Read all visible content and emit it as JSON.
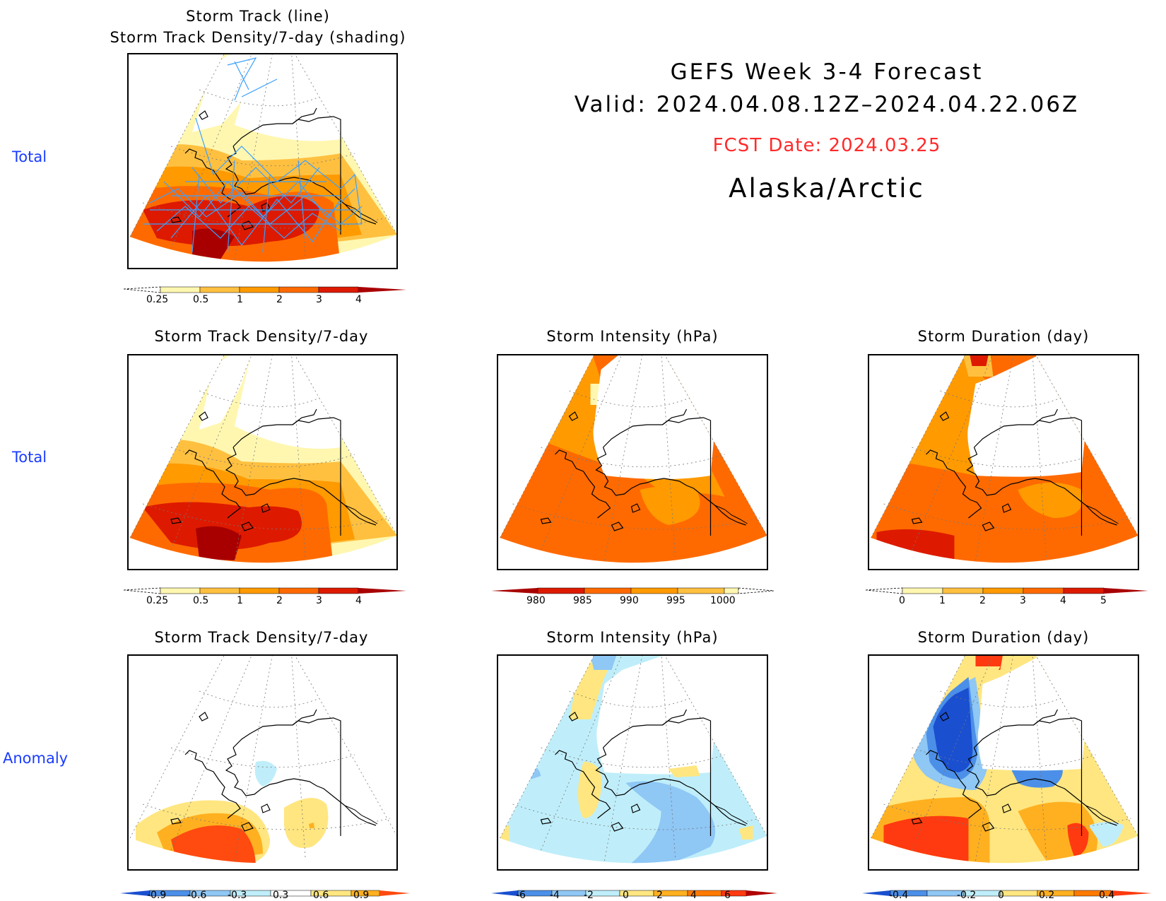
{
  "header": {
    "title_line1": "GEFS Week 3-4 Forecast",
    "title_line2": "Valid: 2024.04.08.12Z–2024.04.22.06Z",
    "fcst_date": "FCST Date: 2024.03.25",
    "region": "Alaska/Arctic"
  },
  "row_labels": {
    "row1": "Total",
    "row2": "Total",
    "row3": "Anomaly"
  },
  "panels": {
    "p1": {
      "title1": "Storm Track (line)",
      "title2": "Storm Track Density/7-day (shading)"
    },
    "p2": {
      "title": "Storm Track Density/7-day"
    },
    "p3": {
      "title": "Storm Intensity (hPa)"
    },
    "p4": {
      "title": "Storm Duration (day)"
    },
    "p5": {
      "title": "Storm Track Density/7-day"
    },
    "p6": {
      "title": "Storm Intensity (hPa)"
    },
    "p7": {
      "title": "Storm Duration (day)"
    }
  },
  "colorbars": {
    "density": {
      "labels": [
        "0.25",
        "0.5",
        "1",
        "2",
        "3",
        "4"
      ],
      "colors": [
        "#ffffff",
        "#fff7b0",
        "#ffc040",
        "#ff9a00",
        "#ff6a00",
        "#dd1a00",
        "#a80000"
      ]
    },
    "intensity": {
      "labels": [
        "980",
        "985",
        "990",
        "995",
        "1000"
      ],
      "colors": [
        "#a80000",
        "#dd1a00",
        "#ff6a00",
        "#ff9a00",
        "#ffc040",
        "#fff7b0",
        "#ffffff"
      ]
    },
    "duration": {
      "labels": [
        "0",
        "1",
        "2",
        "3",
        "4",
        "5"
      ],
      "colors": [
        "#ffffff",
        "#fff7b0",
        "#ffc040",
        "#ff9a00",
        "#ff6a00",
        "#dd1a00",
        "#a80000"
      ]
    },
    "density_anom": {
      "labels": [
        "-0.9",
        "-0.6",
        "-0.3",
        "0.3",
        "0.6",
        "0.9"
      ],
      "colors": [
        "#1a4fd0",
        "#4b8fe8",
        "#8fc7f5",
        "#bfeefa",
        "#ffffff",
        "#ffe680",
        "#ffb020",
        "#ff4a10"
      ]
    },
    "intensity_anom": {
      "labels": [
        "-6",
        "-4",
        "-2",
        "0",
        "2",
        "4",
        "6"
      ],
      "colors": [
        "#1a4fd0",
        "#4b8fe8",
        "#8fc7f5",
        "#bfeefa",
        "#ffe680",
        "#ffb020",
        "#ff7a00",
        "#ff3a10",
        "#b00000"
      ]
    },
    "duration_anom": {
      "labels": [
        "-0.4",
        "-0.2",
        "0",
        "0.2",
        "0.4"
      ],
      "colors": [
        "#1a4fd0",
        "#4b8fe8",
        "#8fc7f5",
        "#bfeefa",
        "#ffe680",
        "#ffb020",
        "#ff7a00",
        "#ff3a10"
      ]
    }
  },
  "colors": {
    "row_label": "#1a3cff",
    "fcst_date": "#ff2a2a",
    "storm_track_line": "#3aa0ff"
  }
}
